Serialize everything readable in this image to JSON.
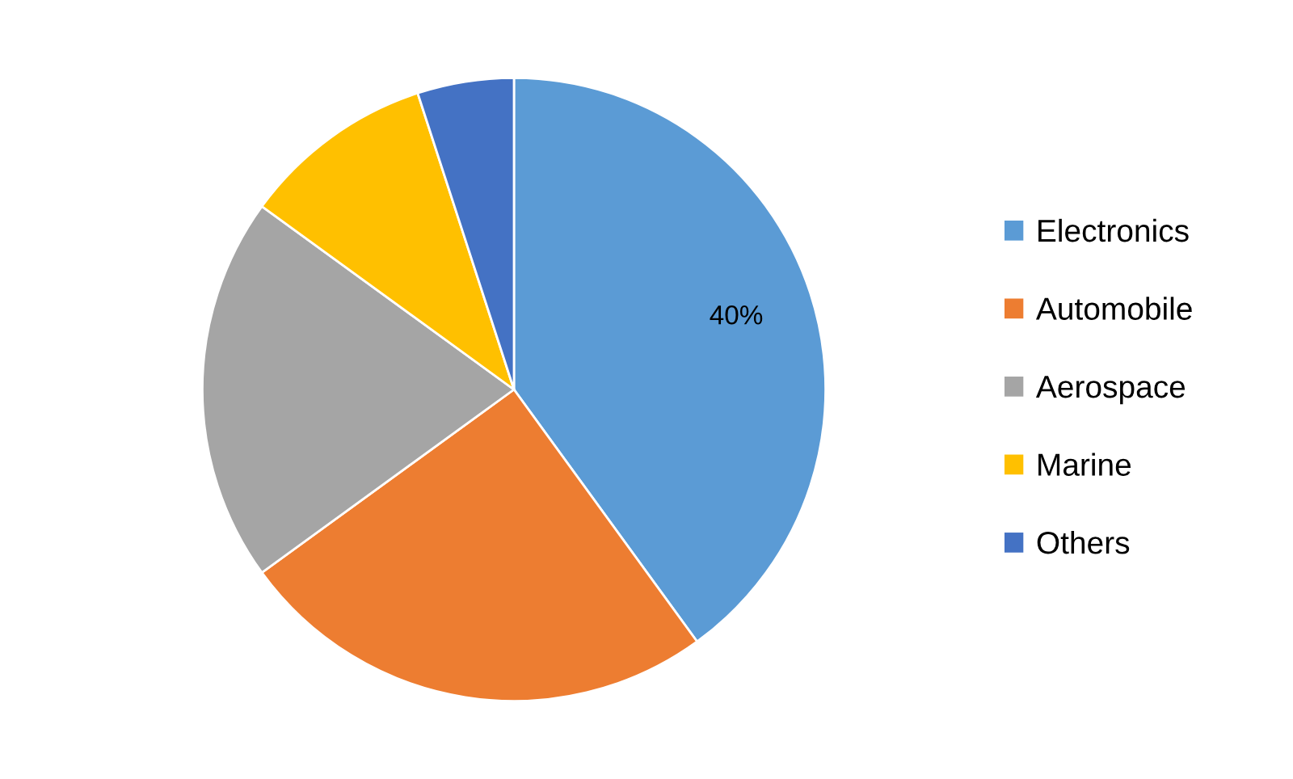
{
  "chart_data": {
    "type": "pie",
    "categories": [
      "Electronics",
      "Automobile",
      "Aerospace",
      "Marine",
      "Others"
    ],
    "values": [
      40,
      25,
      20,
      10,
      5
    ],
    "colors": [
      "#5b9bd5",
      "#ed7d31",
      "#a5a5a5",
      "#ffc000",
      "#4472c4"
    ],
    "value_labels": [
      "40%",
      null,
      null,
      null,
      null
    ],
    "legend": "right"
  }
}
